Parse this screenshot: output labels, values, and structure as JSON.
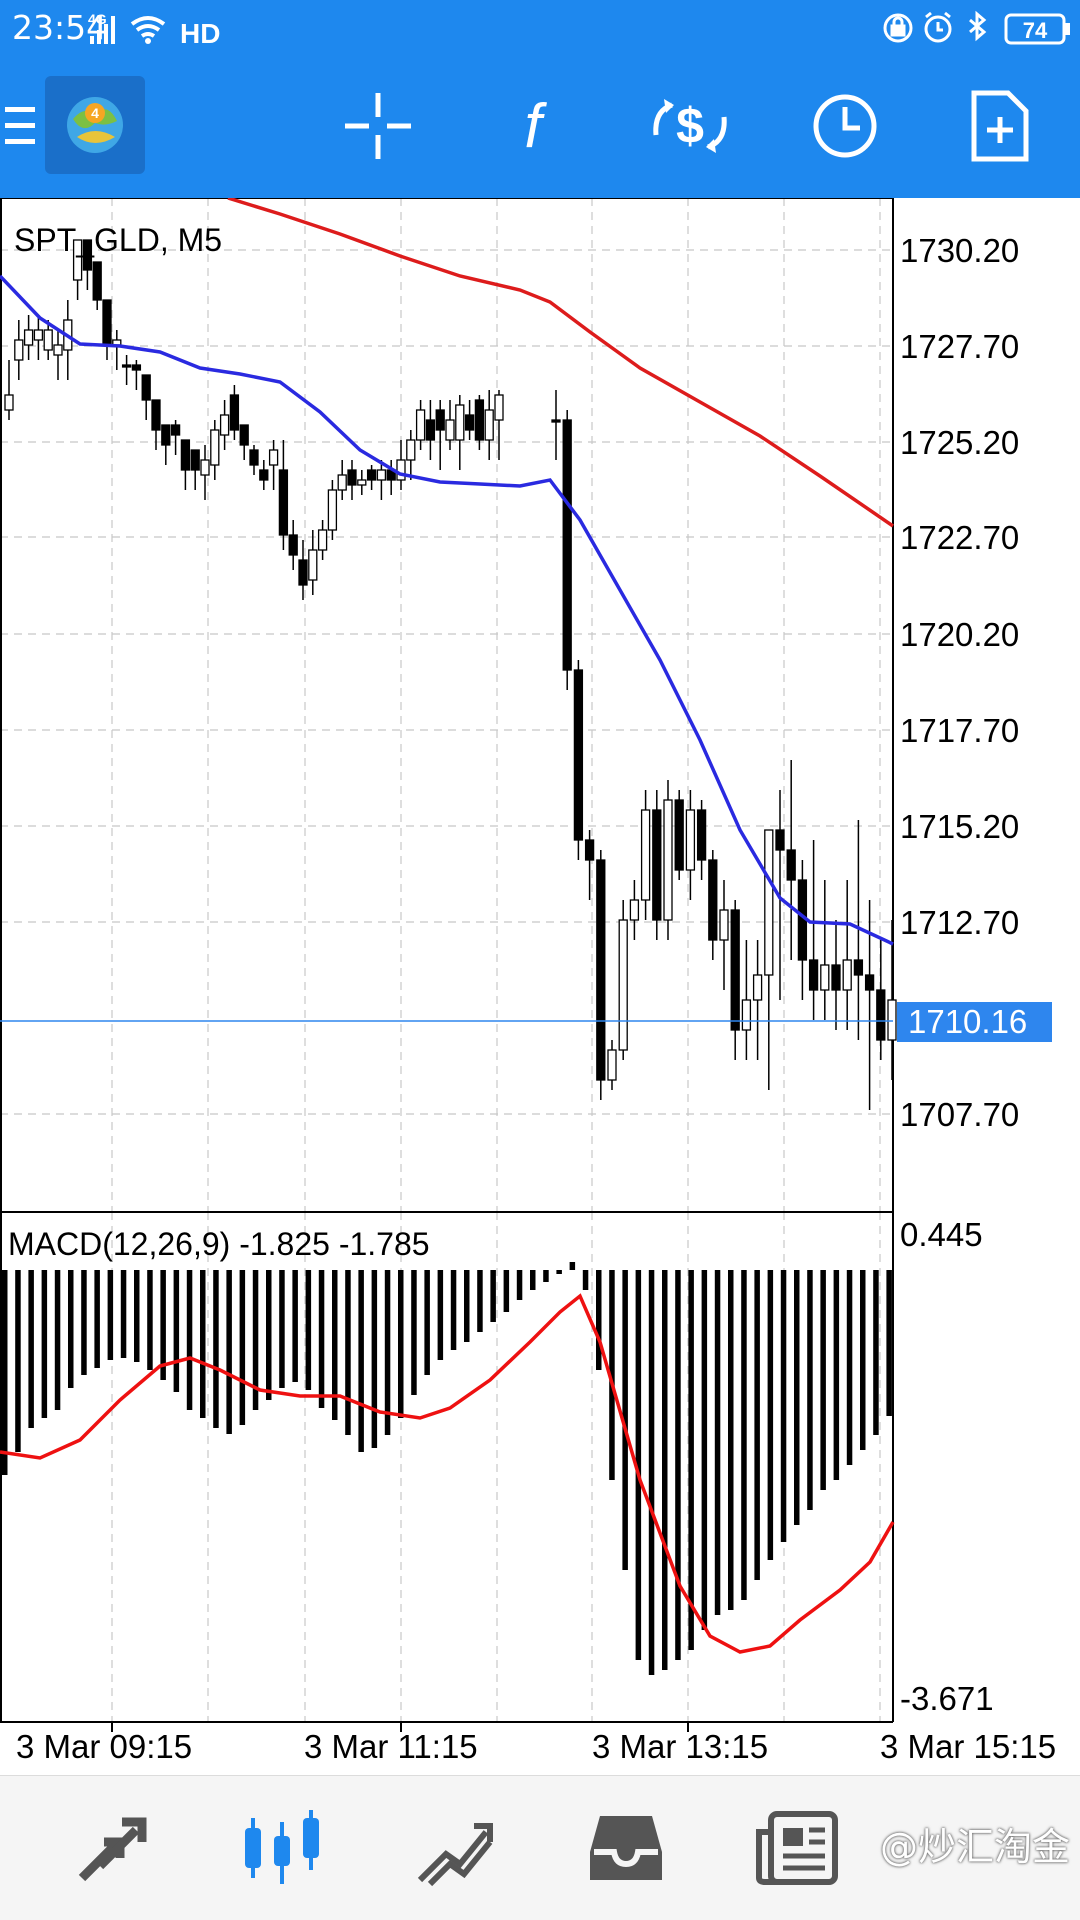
{
  "status_bar": {
    "time": "23:54",
    "network": "4G",
    "hd": "HD",
    "battery": "74",
    "icons": [
      "signal-icon",
      "wifi-icon",
      "alarm-lock-icon",
      "alarm-clock-icon",
      "bluetooth-icon",
      "battery-icon"
    ]
  },
  "toolbar": {
    "icons": [
      "menu-icon",
      "app-logo-icon",
      "crosshair-icon",
      "indicators-icon",
      "trade-icon",
      "timeframe-icon",
      "objects-icon"
    ]
  },
  "chart": {
    "symbol_label": "SPT_GLD, M5",
    "price_labels": [
      "1730.20",
      "1727.70",
      "1725.20",
      "1722.70",
      "1720.20",
      "1717.70",
      "1715.20",
      "1712.70",
      "1707.70"
    ],
    "current_price": "1710.16",
    "indicator_label": "MACD(12,26,9) -1.825 -1.785",
    "indicator_max": "0.445",
    "indicator_min": "-3.671",
    "time_labels": [
      "3 Mar 09:15",
      "3 Mar 11:15",
      "3 Mar 13:15",
      "3 Mar 15:15"
    ],
    "colors": {
      "bull_candle": "#ffffff",
      "bear_candle": "#000000",
      "ma_fast": "#2a2ae0",
      "ma_slow": "#dd1c1c",
      "macd_signal": "#ee1111",
      "current_price": "#2e86ee",
      "grid": "#c8c8c8"
    }
  },
  "bottom_nav": {
    "items": [
      "quotes-icon",
      "chart-icon",
      "trade-icon",
      "history-icon",
      "news-icon"
    ],
    "active": "chart-icon",
    "watermark": "@炒汇淘金"
  }
}
